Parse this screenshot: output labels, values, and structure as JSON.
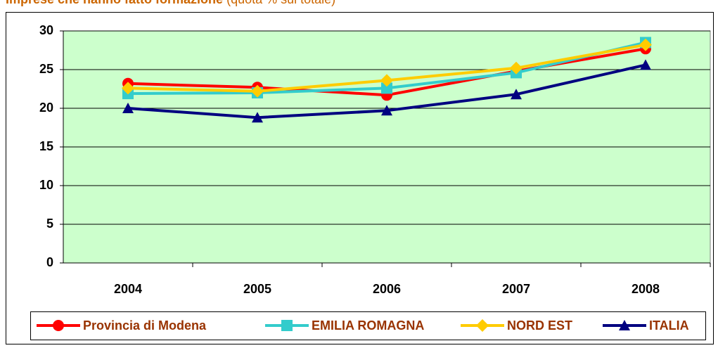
{
  "chart_data": {
    "type": "line",
    "title": "Imprese che hanno fatto formazione",
    "subtitle": "(quota % sul totale)",
    "categories": [
      "2004",
      "2005",
      "2006",
      "2007",
      "2008"
    ],
    "series": [
      {
        "name": "Provincia di Modena",
        "color": "#ff0000",
        "marker": "circle",
        "values": [
          23.2,
          22.7,
          21.7,
          24.8,
          27.7
        ]
      },
      {
        "name": "EMILIA ROMAGNA",
        "color": "#33cccc",
        "marker": "square",
        "values": [
          21.9,
          22.0,
          22.6,
          24.6,
          28.5
        ]
      },
      {
        "name": "NORD EST",
        "color": "#ffcc00",
        "marker": "diamond",
        "values": [
          22.6,
          22.2,
          23.6,
          25.2,
          28.2
        ]
      },
      {
        "name": "ITALIA",
        "color": "#000080",
        "marker": "triangle",
        "values": [
          20.0,
          18.8,
          19.7,
          21.8,
          25.6
        ]
      }
    ],
    "ylim": [
      0,
      30
    ],
    "yticks": [
      0,
      5,
      10,
      15,
      20,
      25,
      30
    ],
    "grid": true,
    "legend": "bottom"
  }
}
